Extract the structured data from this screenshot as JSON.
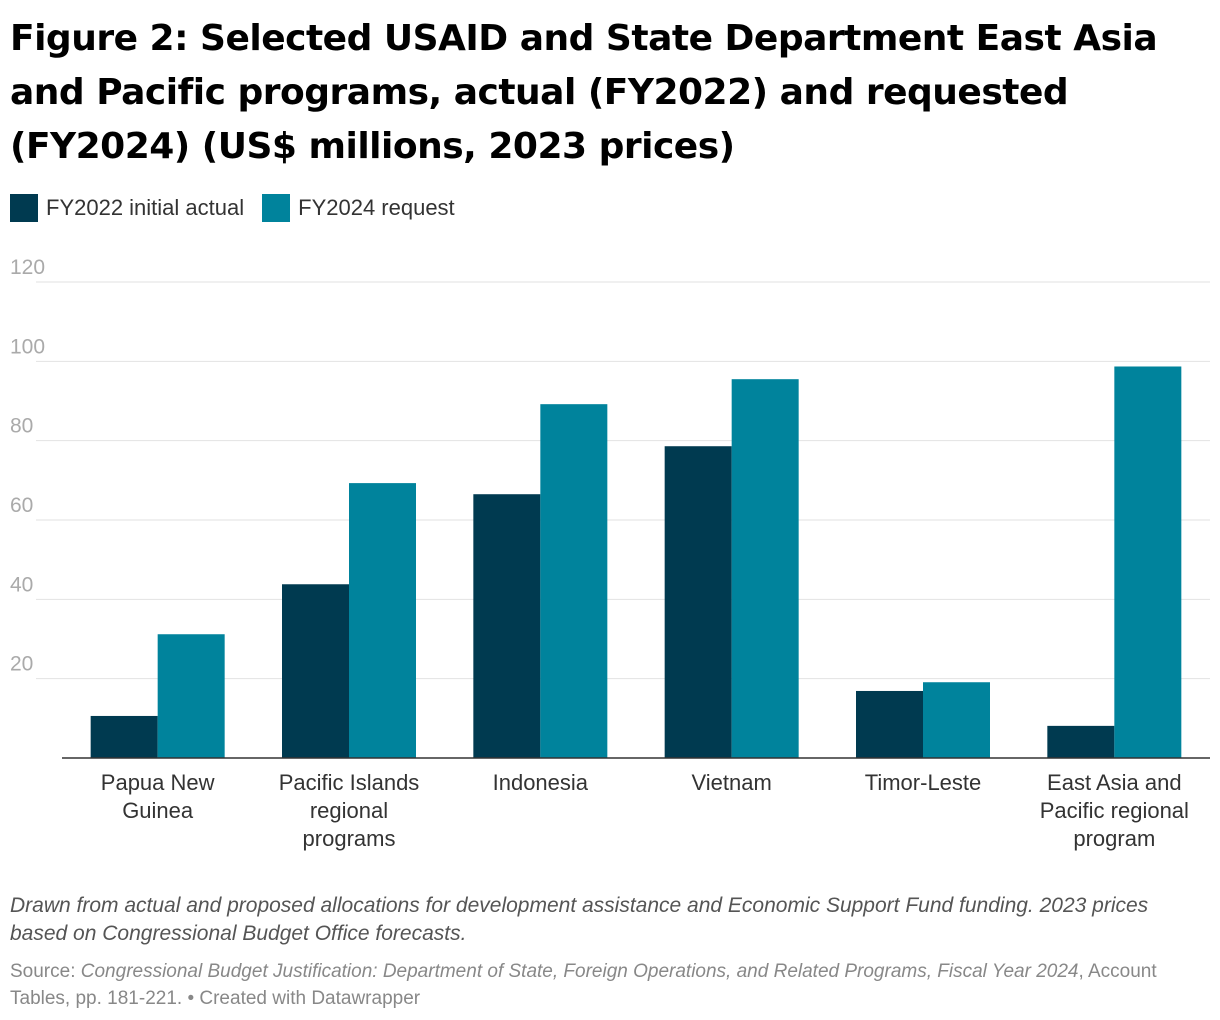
{
  "chart_data": {
    "type": "bar",
    "title": "Figure 2: Selected USAID and State Department East Asia and Pacific programs, actual (FY2022) and requested (FY2024) (US$ millions, 2023 prices)",
    "categories": [
      [
        "Papua New",
        "Guinea"
      ],
      [
        "Pacific Islands",
        "regional",
        "programs"
      ],
      [
        "Indonesia"
      ],
      [
        "Vietnam"
      ],
      [
        "Timor-Leste"
      ],
      [
        "East Asia and",
        "Pacific regional",
        "program"
      ]
    ],
    "series": [
      {
        "name": "FY2022 initial actual",
        "color": "#003a50",
        "values": [
          10.6,
          43.8,
          66.5,
          78.6,
          16.9,
          8.1
        ]
      },
      {
        "name": "FY2024 request",
        "color": "#00839c",
        "values": [
          31.2,
          69.3,
          89.2,
          95.5,
          19.1,
          98.7
        ]
      }
    ],
    "ylim": [
      0,
      120
    ],
    "yticks": [
      20,
      40,
      60,
      80,
      100,
      120
    ],
    "grid": true,
    "legend": "top-left"
  },
  "notes": "Drawn from actual and proposed allocations for development assistance and Economic Support Fund funding. 2023 prices based on Congressional Budget Office forecasts.",
  "source": {
    "label": "Source: ",
    "title": "Congressional Budget Justification: Department of State, Foreign Operations, and Related Programs, Fiscal Year 2024",
    "rest": ", Account Tables, pp. 181-221. • Created with Datawrapper"
  }
}
